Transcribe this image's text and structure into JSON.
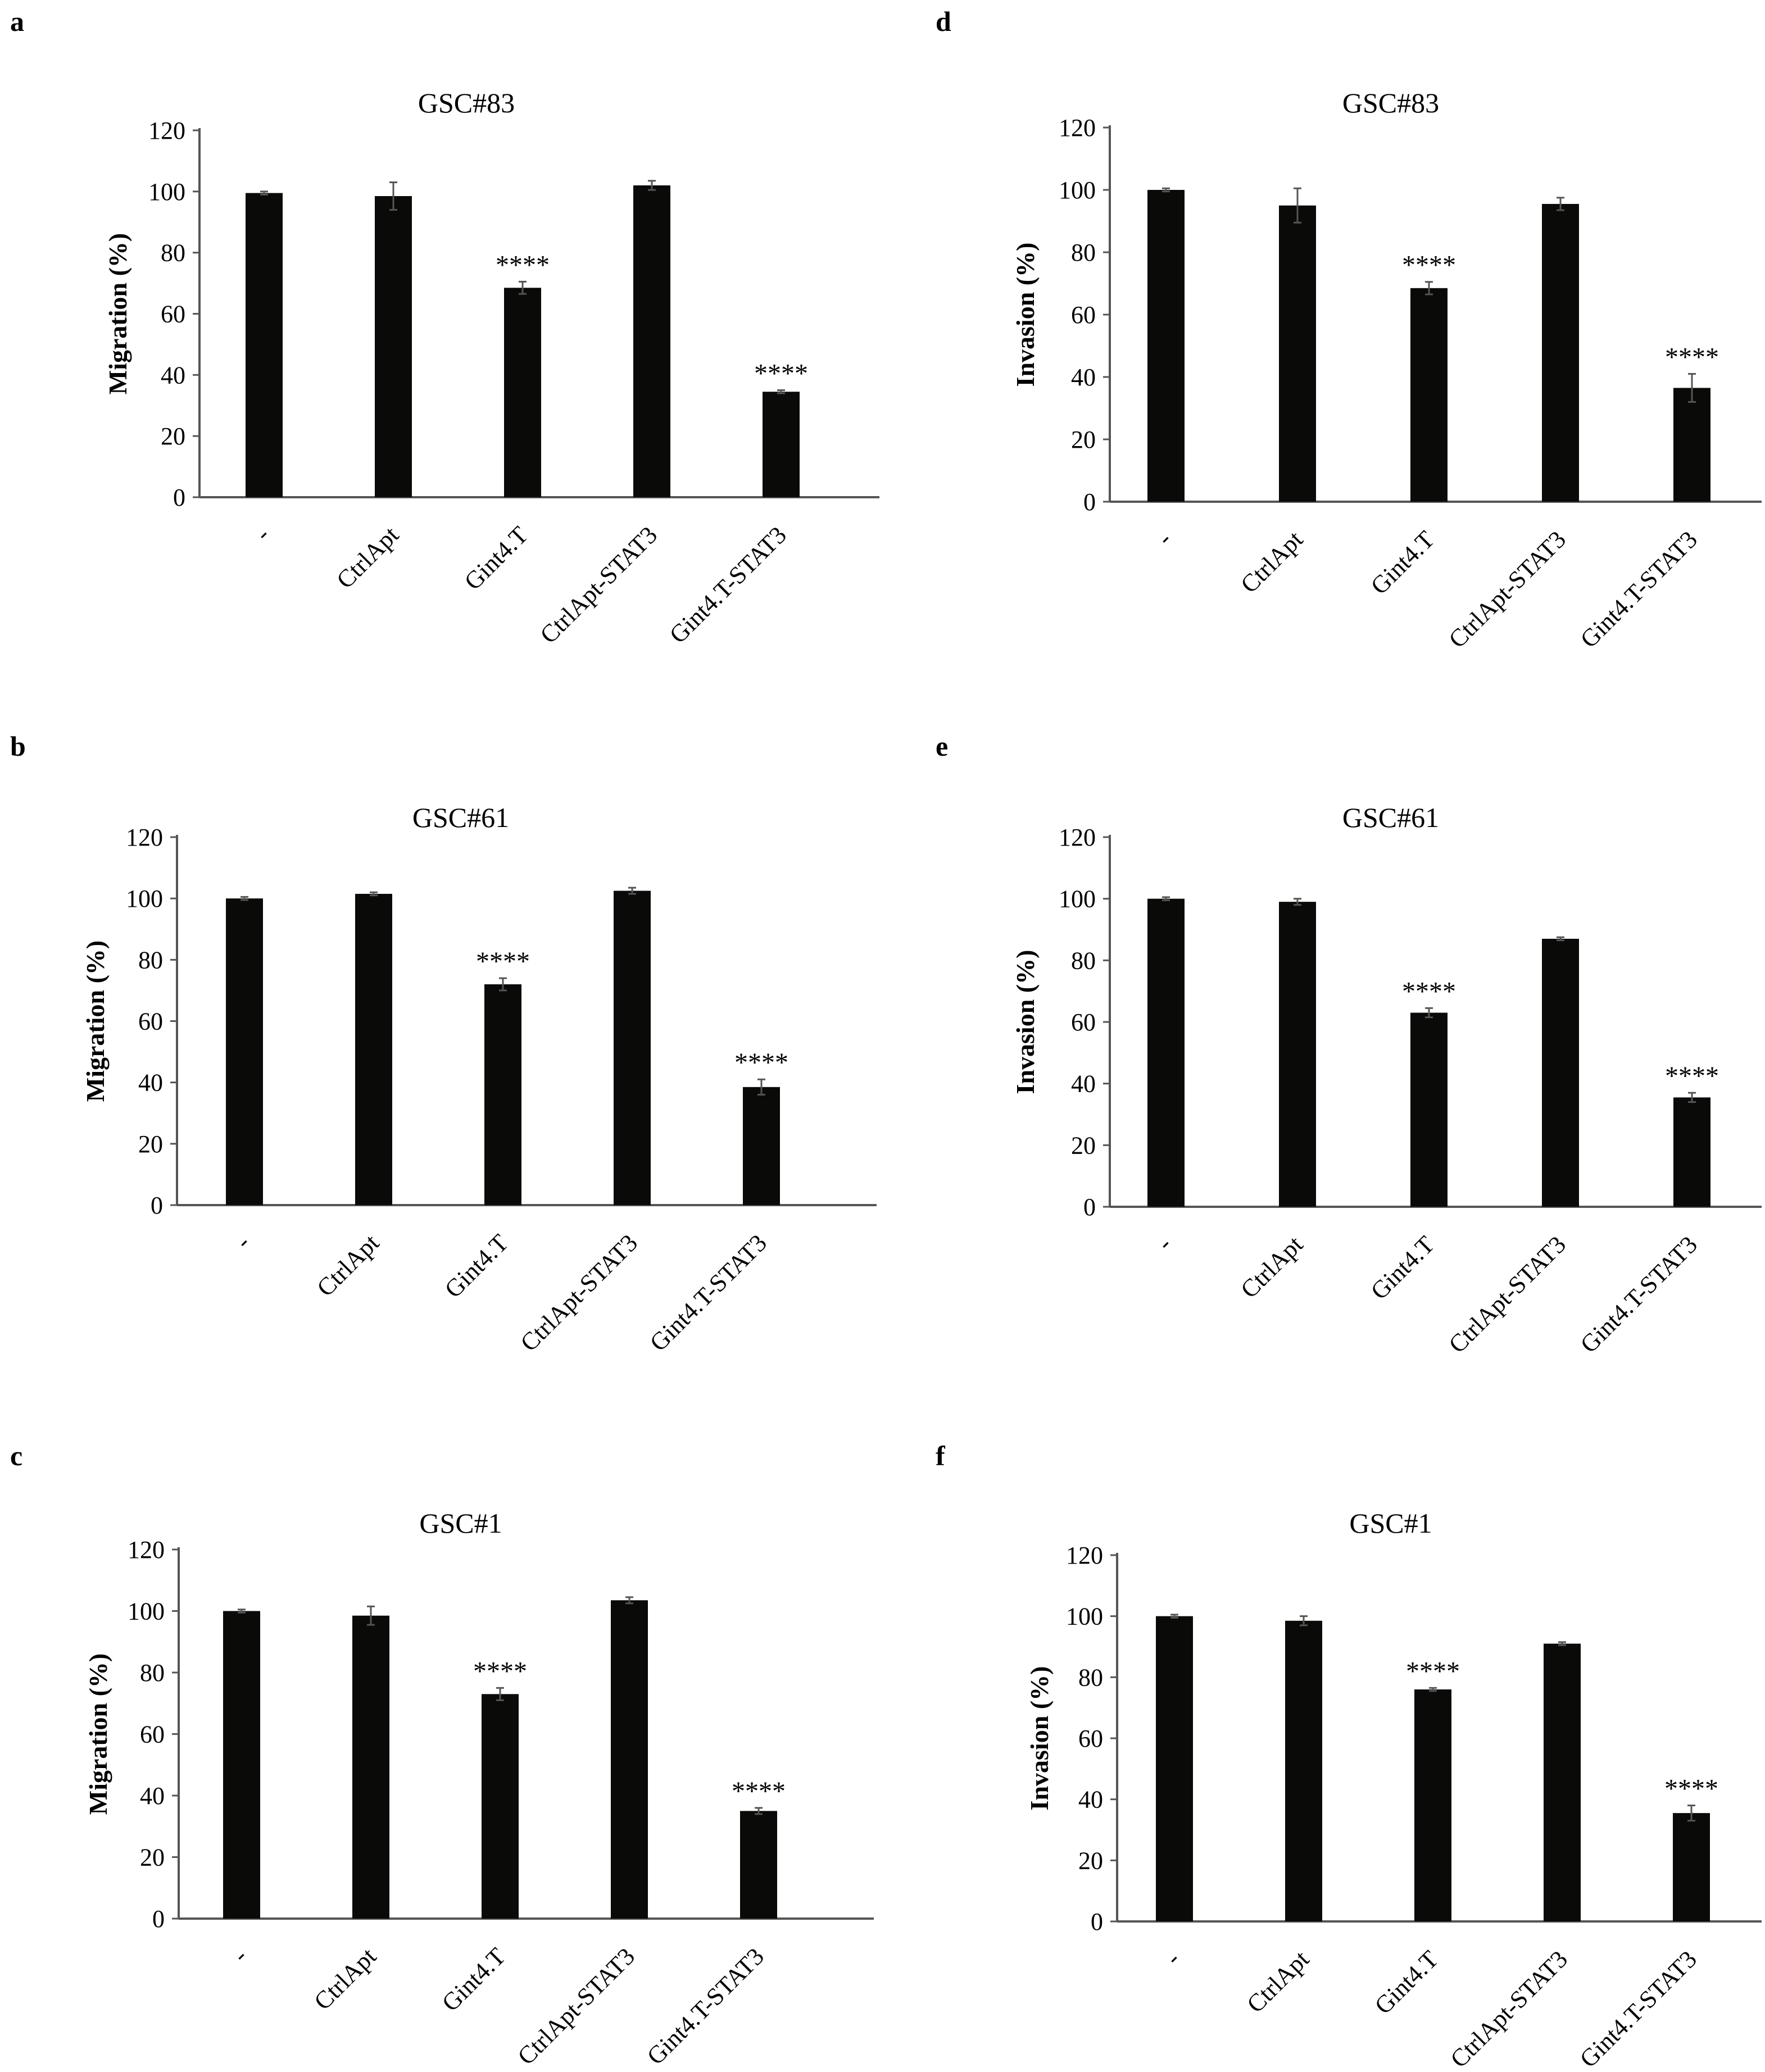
{
  "figure": {
    "panel_labels": [
      "a",
      "d",
      "b",
      "e",
      "c",
      "f"
    ]
  },
  "chart_data": [
    {
      "type": "bar",
      "panel": "a",
      "title": "GSC#83",
      "xlabel": "",
      "ylabel": "Migration (%)",
      "ylim": [
        0,
        120
      ],
      "yticks": [
        0,
        20,
        40,
        60,
        80,
        100,
        120
      ],
      "categories": [
        "-",
        "CtrlApt",
        "Gint4.T",
        "CtrlApt-STAT3",
        "Gint4.T-STAT3"
      ],
      "values": [
        99.5,
        98.5,
        68.5,
        102,
        34.5
      ],
      "errors": [
        0.5,
        4.5,
        2,
        1.5,
        0.5
      ],
      "annotations": [
        "",
        "",
        "****",
        "",
        "****"
      ],
      "bar_color": "#0a0a08"
    },
    {
      "type": "bar",
      "panel": "d",
      "title": "GSC#83",
      "xlabel": "",
      "ylabel": "Invasion (%)",
      "ylim": [
        0,
        120
      ],
      "yticks": [
        0,
        20,
        40,
        60,
        80,
        100,
        120
      ],
      "categories": [
        "-",
        "CtrlApt",
        "Gint4.T",
        "CtrlApt-STAT3",
        "Gint4.T-STAT3"
      ],
      "values": [
        100,
        95,
        68.5,
        95.5,
        36.5
      ],
      "errors": [
        0.5,
        5.5,
        2,
        2,
        4.5
      ],
      "annotations": [
        "",
        "",
        "****",
        "",
        "****"
      ],
      "bar_color": "#0a0a08"
    },
    {
      "type": "bar",
      "panel": "b",
      "title": "GSC#61",
      "xlabel": "",
      "ylabel": "Migration (%)",
      "ylim": [
        0,
        120
      ],
      "yticks": [
        0,
        20,
        40,
        60,
        80,
        100,
        120
      ],
      "categories": [
        "-",
        "CtrlApt",
        "Gint4.T",
        "CtrlApt-STAT3",
        "Gint4.T-STAT3"
      ],
      "values": [
        100,
        101.5,
        72,
        102.5,
        38.5
      ],
      "errors": [
        0.5,
        0.5,
        2,
        1,
        2.5
      ],
      "annotations": [
        "",
        "",
        "****",
        "",
        "****"
      ],
      "bar_color": "#0a0a08"
    },
    {
      "type": "bar",
      "panel": "e",
      "title": "GSC#61",
      "xlabel": "",
      "ylabel": "Invasion (%)",
      "ylim": [
        0,
        120
      ],
      "yticks": [
        0,
        20,
        40,
        60,
        80,
        100,
        120
      ],
      "categories": [
        "-",
        "CtrlApt",
        "Gint4.T",
        "CtrlApt-STAT3",
        "Gint4.T-STAT3"
      ],
      "values": [
        100,
        99,
        63,
        87,
        35.5
      ],
      "errors": [
        0.5,
        1,
        1.5,
        0.5,
        1.5
      ],
      "annotations": [
        "",
        "",
        "****",
        "",
        "****"
      ],
      "bar_color": "#0a0a08"
    },
    {
      "type": "bar",
      "panel": "c",
      "title": "GSC#1",
      "xlabel": "",
      "ylabel": "Migration (%)",
      "ylim": [
        0,
        120
      ],
      "yticks": [
        0,
        20,
        40,
        60,
        80,
        100,
        120
      ],
      "categories": [
        "-",
        "CtrlApt",
        "Gint4.T",
        "CtrlApt-STAT3",
        "Gint4.T-STAT3"
      ],
      "values": [
        100,
        98.5,
        73,
        103.5,
        35
      ],
      "errors": [
        0.5,
        3,
        2,
        1,
        1
      ],
      "annotations": [
        "",
        "",
        "****",
        "",
        "****"
      ],
      "bar_color": "#0a0a08"
    },
    {
      "type": "bar",
      "panel": "f",
      "title": "GSC#1",
      "xlabel": "",
      "ylabel": "Invasion (%)",
      "ylim": [
        0,
        120
      ],
      "yticks": [
        0,
        20,
        40,
        60,
        80,
        100,
        120
      ],
      "categories": [
        "-",
        "CtrlApt",
        "Gint4.T",
        "CtrlApt-STAT3",
        "Gint4.T-STAT3"
      ],
      "values": [
        100,
        98.5,
        76,
        91,
        35.5
      ],
      "errors": [
        0.5,
        1.5,
        0.5,
        0.5,
        2.5
      ],
      "annotations": [
        "",
        "",
        "****",
        "",
        "****"
      ],
      "bar_color": "#0a0a08"
    }
  ]
}
